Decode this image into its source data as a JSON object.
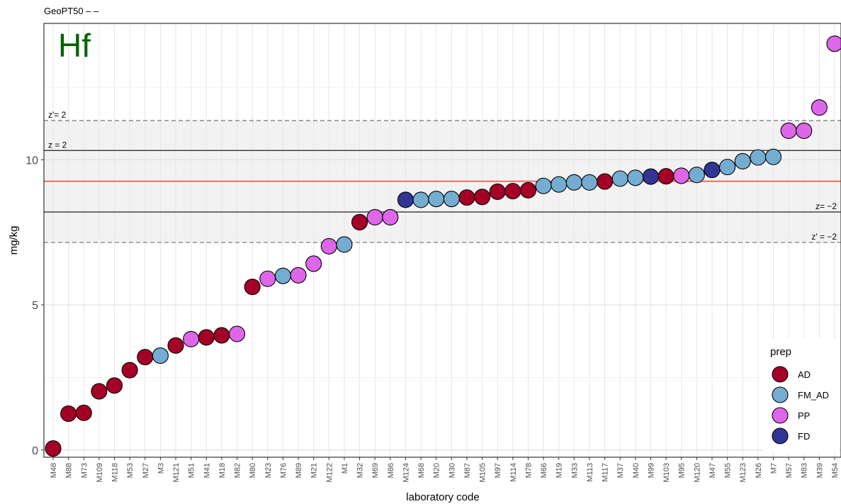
{
  "header": {
    "title": "GeoPT50 –  –"
  },
  "chart_data": {
    "type": "scatter",
    "title": "GeoPT50 –  –",
    "element": "Hf",
    "xlabel": "laboratory code",
    "ylabel": "mg/kg",
    "ylim": [
      -0.25,
      14.7
    ],
    "yticks": [
      0,
      5,
      10
    ],
    "grid": true,
    "colors": {
      "AD": "#a50026",
      "FM_AD": "#74add1",
      "PP": "#de66e8",
      "FD": "#313695"
    },
    "labs": [
      "M48",
      "M88",
      "M73",
      "M109",
      "M118",
      "M53",
      "M27",
      "M3",
      "M121",
      "M51",
      "M41",
      "M18",
      "M82",
      "M80",
      "M23",
      "M76",
      "M89",
      "M21",
      "M122",
      "M1",
      "M32",
      "M69",
      "M86",
      "M124",
      "M68",
      "M20",
      "M30",
      "M87",
      "M105",
      "M97",
      "M114",
      "M78",
      "M66",
      "M19",
      "M33",
      "M113",
      "M117",
      "M37",
      "M40",
      "M99",
      "M103",
      "M95",
      "M120",
      "M47",
      "M55",
      "M123",
      "M26",
      "M7",
      "M57",
      "M83",
      "M39",
      "M54"
    ],
    "values": [
      0.05,
      1.25,
      1.28,
      2.02,
      2.22,
      2.75,
      3.2,
      3.25,
      3.6,
      3.82,
      3.88,
      3.95,
      4.0,
      5.62,
      5.9,
      6.0,
      6.02,
      6.42,
      7.02,
      7.08,
      7.85,
      8.02,
      8.02,
      8.62,
      8.62,
      8.65,
      8.65,
      8.7,
      8.72,
      8.9,
      8.92,
      8.95,
      9.1,
      9.15,
      9.22,
      9.22,
      9.25,
      9.35,
      9.38,
      9.42,
      9.43,
      9.45,
      9.48,
      9.65,
      9.75,
      9.95,
      10.08,
      10.1,
      11.0,
      11.0,
      11.8,
      14.0
    ],
    "prep": [
      "AD",
      "AD",
      "AD",
      "AD",
      "AD",
      "AD",
      "AD",
      "FM_AD",
      "AD",
      "PP",
      "AD",
      "AD",
      "PP",
      "AD",
      "PP",
      "FM_AD",
      "PP",
      "PP",
      "PP",
      "FM_AD",
      "AD",
      "PP",
      "PP",
      "FD",
      "FM_AD",
      "FM_AD",
      "FM_AD",
      "AD",
      "AD",
      "AD",
      "AD",
      "AD",
      "FM_AD",
      "FM_AD",
      "FM_AD",
      "FM_AD",
      "AD",
      "FM_AD",
      "FM_AD",
      "FD",
      "AD",
      "PP",
      "FM_AD",
      "FD",
      "FM_AD",
      "FM_AD",
      "FM_AD",
      "FM_AD",
      "PP",
      "PP",
      "PP",
      "PP"
    ],
    "assigned_value": 9.26,
    "z_upper": 10.32,
    "z_lower": 8.2,
    "zprime_upper": 11.35,
    "zprime_lower": 7.15,
    "assigned_color": "#e8705a",
    "annotations": {
      "z_up": "z = 2",
      "z_low": "z= −2",
      "zp_up": "z'= 2",
      "zp_low": "z' = −2"
    },
    "legend": {
      "title": "prep",
      "items": [
        "AD",
        "FM_AD",
        "PP",
        "FD"
      ],
      "position": "bottom-right"
    }
  }
}
